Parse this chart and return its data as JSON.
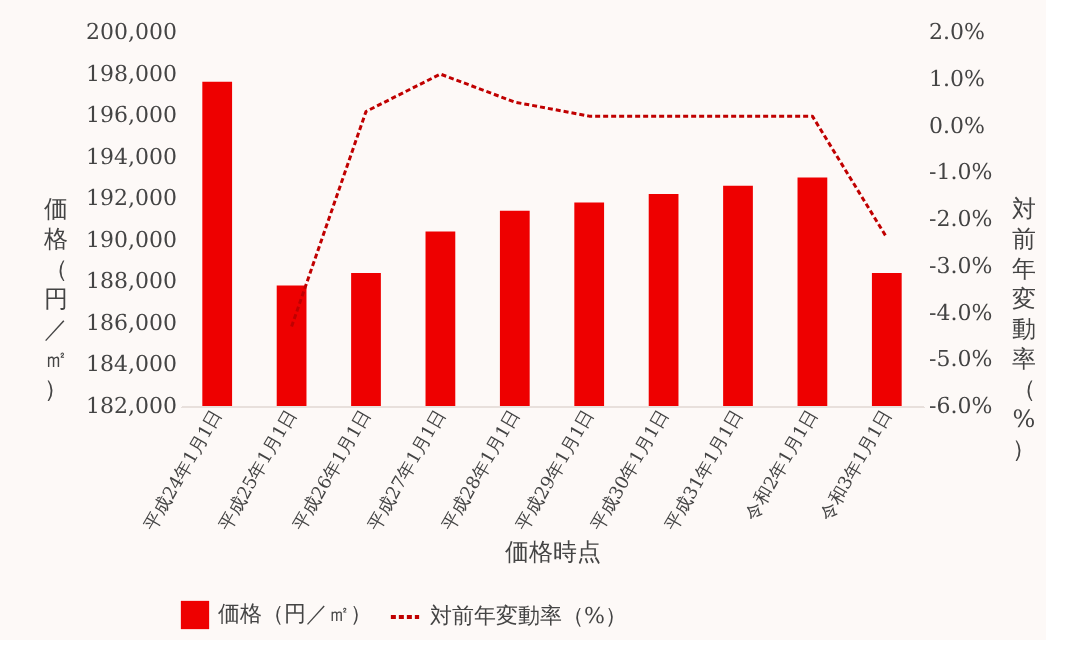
{
  "chart_data": {
    "type": "bar",
    "xlabel": "価格時点",
    "ylabel": "価格（円／㎡）",
    "y2label": "対前年変動率（%）",
    "categories": [
      "平成24年1月1日",
      "平成25年1月1日",
      "平成26年1月1日",
      "平成27年1月1日",
      "平成28年1月1日",
      "平成29年1月1日",
      "平成30年1月1日",
      "平成31年1月1日",
      "令和2年1月1日",
      "令和3年1月1日"
    ],
    "series": [
      {
        "name": "価格（円／㎡）",
        "color": "#ee0000",
        "values": [
          197600,
          187800,
          188400,
          190400,
          191400,
          191800,
          192200,
          192600,
          193000,
          188400
        ]
      },
      {
        "name": "対前年変動率（%）",
        "type": "line",
        "axis": "y2",
        "color": "#c00000",
        "line_style": "dashed",
        "marker": "none",
        "values": [
          null,
          -4.3,
          0.3,
          1.1,
          0.5,
          0.2,
          0.2,
          0.2,
          0.2,
          -2.4
        ]
      }
    ],
    "ylim": [
      182000,
      200000
    ],
    "yticks": [
      {
        "value": 182000,
        "label": "182,000"
      },
      {
        "value": 184000,
        "label": "184,000"
      },
      {
        "value": 186000,
        "label": "186,000"
      },
      {
        "value": 188000,
        "label": "188,000"
      },
      {
        "value": 190000,
        "label": "190,000"
      },
      {
        "value": 192000,
        "label": "192,000"
      },
      {
        "value": 194000,
        "label": "194,000"
      },
      {
        "value": 196000,
        "label": "196,000"
      },
      {
        "value": 198000,
        "label": "198,000"
      },
      {
        "value": 200000,
        "label": "200,000"
      }
    ],
    "y2lim": [
      -6,
      2
    ],
    "y2ticks": [
      {
        "value": -6,
        "label": "-6.0%"
      },
      {
        "value": -5,
        "label": "-5.0%"
      },
      {
        "value": -4,
        "label": "-4.0%"
      },
      {
        "value": -3,
        "label": "-3.0%"
      },
      {
        "value": -2,
        "label": "-2.0%"
      },
      {
        "value": -1,
        "label": "-1.0%"
      },
      {
        "value": 0,
        "label": "0.0%"
      },
      {
        "value": 1,
        "label": "1.0%"
      },
      {
        "value": 2,
        "label": "2.0%"
      }
    ],
    "grid": false,
    "legend": "bottom"
  }
}
